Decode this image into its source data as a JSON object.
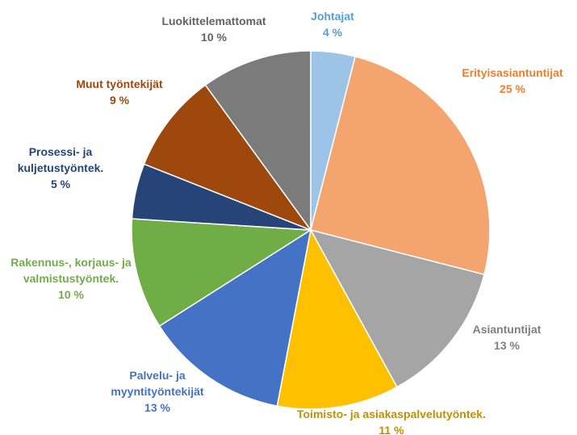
{
  "chart_data": {
    "type": "pie",
    "categories": [
      "Johtajat",
      "Erityisasiantuntijat",
      "Asiantuntijat",
      "Toimisto- ja asiakaspalvelutyöntek.",
      "Palvelu- ja myyntityöntekijät",
      "Rakennus-, korjaus- ja valmistustyöntek.",
      "Prosessi- ja kuljetustyöntek.",
      "Muut työntekijät",
      "Luokittelemattomat"
    ],
    "values": [
      4,
      25,
      13,
      11,
      13,
      10,
      5,
      9,
      10
    ],
    "value_labels": [
      "4 %",
      "25 %",
      "13 %",
      "11 %",
      "13 %",
      "10 %",
      "5 %",
      "9 %",
      "10 %"
    ],
    "colors": [
      "#9dc3e6",
      "#f4a46e",
      "#a5a5a5",
      "#ffc000",
      "#4472c4",
      "#70ad47",
      "#264478",
      "#9e480e",
      "#7b7b7b"
    ],
    "label_colors": [
      "#5b9bd5",
      "#ed7d31",
      "#7f7f7f",
      "#bf9000",
      "#4472c4",
      "#70ad47",
      "#264478",
      "#9e480e",
      "#636363"
    ]
  }
}
